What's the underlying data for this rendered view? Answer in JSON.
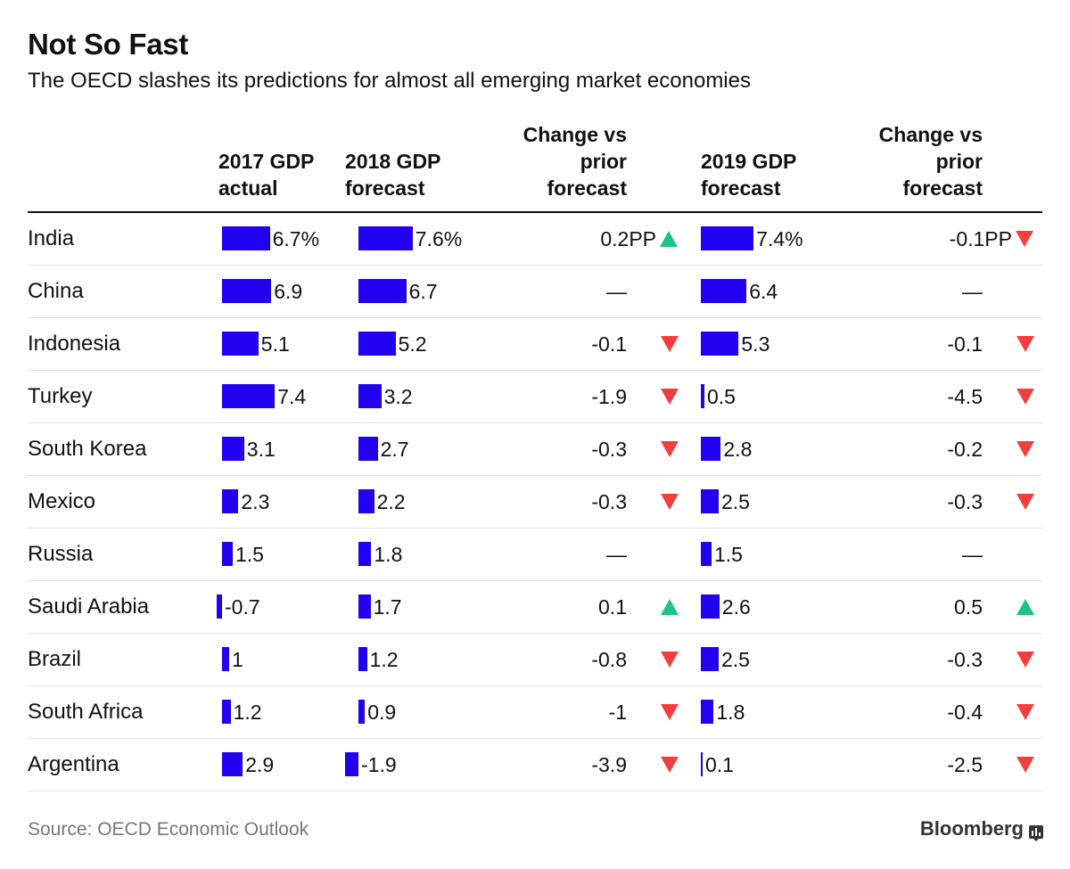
{
  "title": "Not So Fast",
  "subtitle": "The OECD slashes its predictions for almost all emerging market economies",
  "headers": {
    "gdp2017": "2017 GDP\nactual",
    "gdp2018": "2018 GDP\nforecast",
    "change2018": "Change vs\nprior\nforecast",
    "gdp2019": "2019 GDP\nforecast",
    "change2019": "Change vs\nprior\nforecast"
  },
  "footer": {
    "source": "Source: OECD Economic Outlook",
    "brand": "Bloomberg"
  },
  "colors": {
    "bar": "#2200f0",
    "down": "#f33e3e",
    "up": "#1ec28b",
    "rule": "#111111",
    "row_rule": "#e2e2e2"
  },
  "icons": {
    "down": "down-arrow-icon",
    "up": "up-arrow-icon",
    "brand": "bloomberg-terminal-icon"
  },
  "chart_data": {
    "type": "table",
    "title": "Not So Fast",
    "subtitle": "The OECD slashes its predictions for almost all emerging market economies",
    "columns": [
      "2017 GDP actual",
      "2018 GDP forecast",
      "Change vs prior forecast",
      "2019 GDP forecast",
      "Change vs prior forecast"
    ],
    "rows": [
      {
        "country": "India",
        "gdp2017": 6.7,
        "gdp2017_label": "6.7%",
        "gdp2018": 7.6,
        "gdp2018_label": "7.6%",
        "chg2018": 0.2,
        "chg2018_label": "0.2PP",
        "chg2018_dir": "up",
        "gdp2019": 7.4,
        "gdp2019_label": "7.4%",
        "chg2019": -0.1,
        "chg2019_label": "-0.1PP",
        "chg2019_dir": "down"
      },
      {
        "country": "China",
        "gdp2017": 6.9,
        "gdp2017_label": "6.9",
        "gdp2018": 6.7,
        "gdp2018_label": "6.7",
        "chg2018": null,
        "chg2018_label": "—",
        "chg2018_dir": "none",
        "gdp2019": 6.4,
        "gdp2019_label": "6.4",
        "chg2019": null,
        "chg2019_label": "—",
        "chg2019_dir": "none"
      },
      {
        "country": "Indonesia",
        "gdp2017": 5.1,
        "gdp2017_label": "5.1",
        "gdp2018": 5.2,
        "gdp2018_label": "5.2",
        "chg2018": -0.1,
        "chg2018_label": "-0.1",
        "chg2018_dir": "down",
        "gdp2019": 5.3,
        "gdp2019_label": "5.3",
        "chg2019": -0.1,
        "chg2019_label": "-0.1",
        "chg2019_dir": "down"
      },
      {
        "country": "Turkey",
        "gdp2017": 7.4,
        "gdp2017_label": "7.4",
        "gdp2018": 3.2,
        "gdp2018_label": "3.2",
        "chg2018": -1.9,
        "chg2018_label": "-1.9",
        "chg2018_dir": "down",
        "gdp2019": 0.5,
        "gdp2019_label": "0.5",
        "chg2019": -4.5,
        "chg2019_label": "-4.5",
        "chg2019_dir": "down"
      },
      {
        "country": "South Korea",
        "gdp2017": 3.1,
        "gdp2017_label": "3.1",
        "gdp2018": 2.7,
        "gdp2018_label": "2.7",
        "chg2018": -0.3,
        "chg2018_label": "-0.3",
        "chg2018_dir": "down",
        "gdp2019": 2.8,
        "gdp2019_label": "2.8",
        "chg2019": -0.2,
        "chg2019_label": "-0.2",
        "chg2019_dir": "down"
      },
      {
        "country": "Mexico",
        "gdp2017": 2.3,
        "gdp2017_label": "2.3",
        "gdp2018": 2.2,
        "gdp2018_label": "2.2",
        "chg2018": -0.3,
        "chg2018_label": "-0.3",
        "chg2018_dir": "down",
        "gdp2019": 2.5,
        "gdp2019_label": "2.5",
        "chg2019": -0.3,
        "chg2019_label": "-0.3",
        "chg2019_dir": "down"
      },
      {
        "country": "Russia",
        "gdp2017": 1.5,
        "gdp2017_label": "1.5",
        "gdp2018": 1.8,
        "gdp2018_label": "1.8",
        "chg2018": null,
        "chg2018_label": "—",
        "chg2018_dir": "none",
        "gdp2019": 1.5,
        "gdp2019_label": "1.5",
        "chg2019": null,
        "chg2019_label": "—",
        "chg2019_dir": "none"
      },
      {
        "country": "Saudi Arabia",
        "gdp2017": -0.7,
        "gdp2017_label": "-0.7",
        "gdp2018": 1.7,
        "gdp2018_label": "1.7",
        "chg2018": 0.1,
        "chg2018_label": "0.1",
        "chg2018_dir": "up",
        "gdp2019": 2.6,
        "gdp2019_label": "2.6",
        "chg2019": 0.5,
        "chg2019_label": "0.5",
        "chg2019_dir": "up"
      },
      {
        "country": "Brazil",
        "gdp2017": 1.0,
        "gdp2017_label": "1",
        "gdp2018": 1.2,
        "gdp2018_label": "1.2",
        "chg2018": -0.8,
        "chg2018_label": "-0.8",
        "chg2018_dir": "down",
        "gdp2019": 2.5,
        "gdp2019_label": "2.5",
        "chg2019": -0.3,
        "chg2019_label": "-0.3",
        "chg2019_dir": "down"
      },
      {
        "country": "South Africa",
        "gdp2017": 1.2,
        "gdp2017_label": "1.2",
        "gdp2018": 0.9,
        "gdp2018_label": "0.9",
        "chg2018": -1.0,
        "chg2018_label": "-1",
        "chg2018_dir": "down",
        "gdp2019": 1.8,
        "gdp2019_label": "1.8",
        "chg2019": -0.4,
        "chg2019_label": "-0.4",
        "chg2019_dir": "down"
      },
      {
        "country": "Argentina",
        "gdp2017": 2.9,
        "gdp2017_label": "2.9",
        "gdp2018": -1.9,
        "gdp2018_label": "-1.9",
        "chg2018": -3.9,
        "chg2018_label": "-3.9",
        "chg2018_dir": "down",
        "gdp2019": 0.1,
        "gdp2019_label": "0.1",
        "chg2019": -2.5,
        "chg2019_label": "-2.5",
        "chg2019_dir": "down"
      }
    ]
  }
}
